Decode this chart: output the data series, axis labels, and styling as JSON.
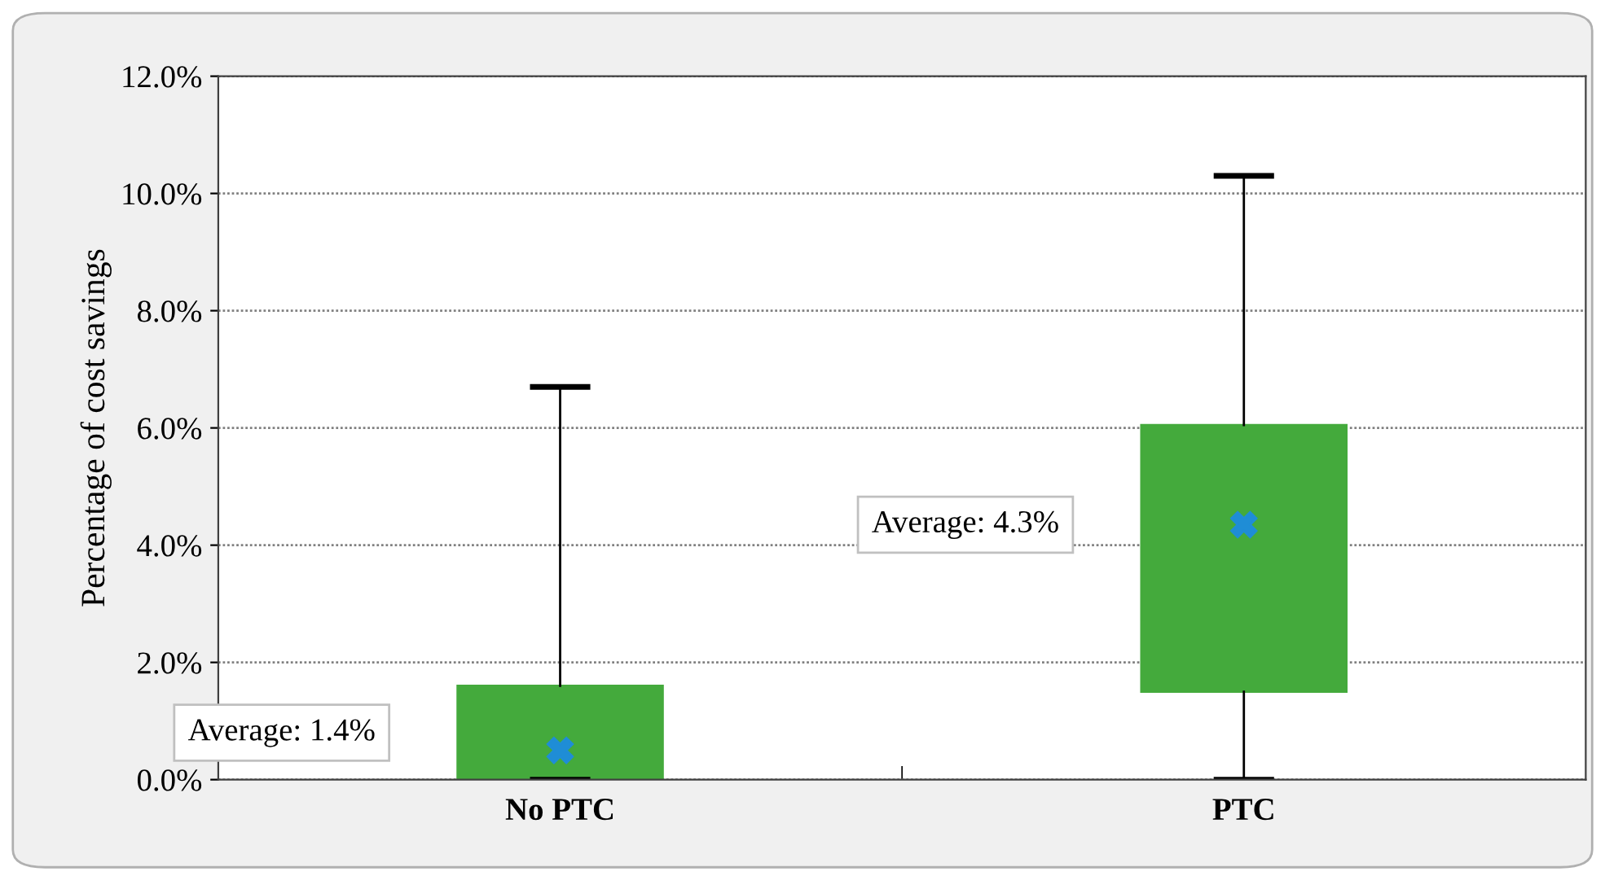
{
  "chart_data": {
    "type": "box",
    "ylabel": "Percentage of cost savings",
    "categories": [
      "No PTC",
      "PTC"
    ],
    "boxes": [
      {
        "low": 0,
        "q1": 0,
        "q3": 1.6,
        "high": 6.7,
        "mean": 0.5
      },
      {
        "low": 0,
        "q1": 1.5,
        "q3": 6.05,
        "high": 10.3,
        "mean": 4.35
      }
    ],
    "color": "#44aa3c",
    "ylim": [
      0,
      12
    ],
    "yticks": [
      {
        "value": 0,
        "label": "0.0%"
      },
      {
        "value": 2,
        "label": "2.0%"
      },
      {
        "value": 4,
        "label": "4.0%"
      },
      {
        "value": 6,
        "label": "6.0%"
      },
      {
        "value": 8,
        "label": "8.0%"
      },
      {
        "value": 10,
        "label": "10.0%"
      },
      {
        "value": 12,
        "label": "12.0%"
      }
    ],
    "grid": "y",
    "annotations": [
      "Average: 1.4%",
      "Average: 4.3%"
    ]
  }
}
